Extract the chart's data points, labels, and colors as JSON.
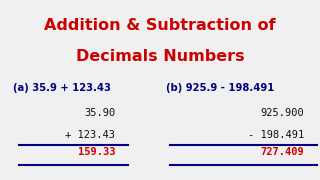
{
  "title_line1": "Addition & Subtraction of",
  "title_line2": "Decimals Numbers",
  "title_color": "#cc0000",
  "background_color": "#f0f0f0",
  "label_a": "(a) 35.9 + 123.43",
  "label_b": "(b) 925.9 - 198.491",
  "label_color": "#000080",
  "calc_a_line1": "35.90",
  "calc_a_line2": "+ 123.43",
  "calc_a_result": "159.33",
  "calc_b_line1": "925.900",
  "calc_b_line2": "- 198.491",
  "calc_b_result": "727.409",
  "calc_color": "#111111",
  "result_color": "#cc0000",
  "line_color": "#000080"
}
